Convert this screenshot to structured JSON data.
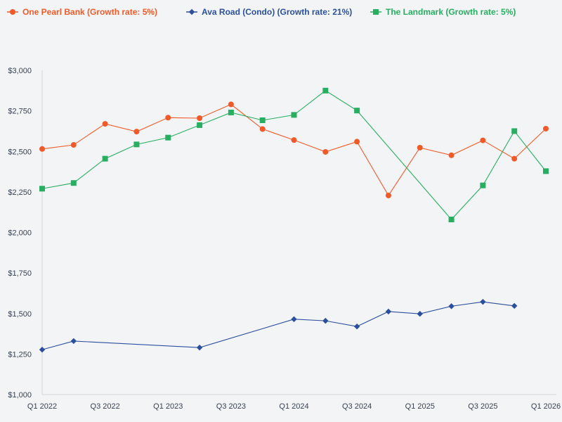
{
  "chart_data": {
    "type": "line",
    "title": "",
    "xlabel": "",
    "ylabel": "",
    "ylim": [
      1000,
      3000
    ],
    "x_ticks": [
      "Q1 2022",
      "Q3 2022",
      "Q1 2023",
      "Q3 2023",
      "Q1 2024",
      "Q3 2024",
      "Q1 2025",
      "Q3 2025",
      "Q1 2026"
    ],
    "y_ticks": [
      {
        "value": 1000,
        "label": "$1,000"
      },
      {
        "value": 1250,
        "label": "$1,250"
      },
      {
        "value": 1500,
        "label": "$1,500"
      },
      {
        "value": 1750,
        "label": "$1,750"
      },
      {
        "value": 2000,
        "label": "$2,000"
      },
      {
        "value": 2250,
        "label": "$2,250"
      },
      {
        "value": 2500,
        "label": "$2,500"
      },
      {
        "value": 2750,
        "label": "$2,750"
      },
      {
        "value": 3000,
        "label": "$3,000"
      }
    ],
    "series": [
      {
        "name": "One Pearl Bank (Growth rate: 5%)",
        "color": "#f05a28",
        "marker": "circle",
        "points": [
          {
            "x": 0,
            "y": 2515
          },
          {
            "x": 1,
            "y": 2540
          },
          {
            "x": 2,
            "y": 2670
          },
          {
            "x": 3,
            "y": 2622
          },
          {
            "x": 4,
            "y": 2708
          },
          {
            "x": 5,
            "y": 2705
          },
          {
            "x": 6,
            "y": 2790
          },
          {
            "x": 7,
            "y": 2638
          },
          {
            "x": 8,
            "y": 2570
          },
          {
            "x": 9,
            "y": 2497
          },
          {
            "x": 10,
            "y": 2560
          },
          {
            "x": 11,
            "y": 2228
          },
          {
            "x": 12,
            "y": 2523
          },
          {
            "x": 13,
            "y": 2476
          },
          {
            "x": 14,
            "y": 2568
          },
          {
            "x": 15,
            "y": 2455
          },
          {
            "x": 16,
            "y": 2640
          }
        ]
      },
      {
        "name": "Ava Road (Condo) (Growth rate: 21%)",
        "color": "#2a4f9c",
        "marker": "diamond",
        "points": [
          {
            "x": 0,
            "y": 1277
          },
          {
            "x": 1,
            "y": 1330
          },
          {
            "x": 5,
            "y": 1290
          },
          {
            "x": 8,
            "y": 1465
          },
          {
            "x": 9,
            "y": 1455
          },
          {
            "x": 10,
            "y": 1420
          },
          {
            "x": 11,
            "y": 1512
          },
          {
            "x": 12,
            "y": 1498
          },
          {
            "x": 13,
            "y": 1545
          },
          {
            "x": 14,
            "y": 1572
          },
          {
            "x": 15,
            "y": 1547
          }
        ]
      },
      {
        "name": "The Landmark (Growth rate: 5%)",
        "color": "#27ae60",
        "marker": "square",
        "points": [
          {
            "x": 0,
            "y": 2270
          },
          {
            "x": 1,
            "y": 2305
          },
          {
            "x": 2,
            "y": 2455
          },
          {
            "x": 3,
            "y": 2543
          },
          {
            "x": 4,
            "y": 2585
          },
          {
            "x": 5,
            "y": 2662
          },
          {
            "x": 6,
            "y": 2740
          },
          {
            "x": 7,
            "y": 2692
          },
          {
            "x": 8,
            "y": 2725
          },
          {
            "x": 9,
            "y": 2875
          },
          {
            "x": 10,
            "y": 2752
          },
          {
            "x": 13,
            "y": 2080
          },
          {
            "x": 14,
            "y": 2290
          },
          {
            "x": 15,
            "y": 2625
          },
          {
            "x": 16,
            "y": 2378
          }
        ]
      }
    ]
  }
}
